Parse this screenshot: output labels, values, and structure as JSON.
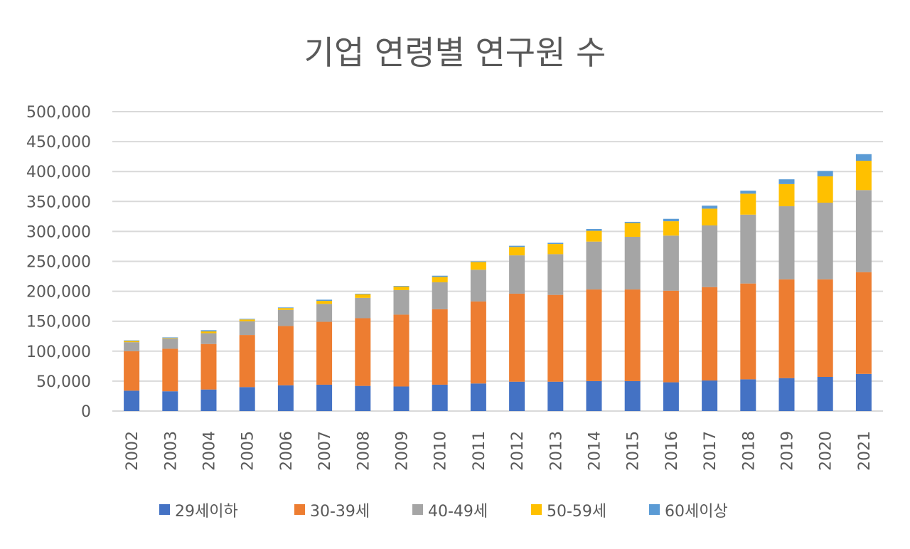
{
  "chart_data": {
    "type": "bar",
    "stacked": true,
    "title": "기업 연령별 연구원 수",
    "xlabel": "",
    "ylabel": "",
    "ylim": [
      0,
      500000
    ],
    "yticks": [
      "0",
      "50,000",
      "100,000",
      "150,000",
      "200,000",
      "250,000",
      "300,000",
      "350,000",
      "400,000",
      "450,000",
      "500,000"
    ],
    "grid": true,
    "legend_position": "bottom",
    "categories": [
      "2002",
      "2003",
      "2004",
      "2005",
      "2006",
      "2007",
      "2008",
      "2009",
      "2010",
      "2011",
      "2012",
      "2013",
      "2014",
      "2015",
      "2016",
      "2017",
      "2018",
      "2019",
      "2020",
      "2021"
    ],
    "series": [
      {
        "name": "29세이하",
        "color": "#4472C4",
        "values": [
          34000,
          33000,
          36000,
          40000,
          43000,
          44000,
          42000,
          41000,
          44000,
          46000,
          49000,
          49000,
          50000,
          50000,
          48000,
          51000,
          53000,
          55000,
          57000,
          62000
        ]
      },
      {
        "name": "30-39세",
        "color": "#ED7D31",
        "values": [
          66000,
          71000,
          76000,
          87000,
          99000,
          105000,
          113000,
          120000,
          126000,
          137000,
          147000,
          145000,
          153000,
          153000,
          153000,
          156000,
          160000,
          165000,
          163000,
          170000
        ]
      },
      {
        "name": "40-49세",
        "color": "#A5A5A5",
        "values": [
          15000,
          17000,
          18000,
          23000,
          27000,
          30000,
          34000,
          41000,
          45000,
          53000,
          64000,
          68000,
          80000,
          88000,
          92000,
          103000,
          115000,
          122000,
          128000,
          137000
        ]
      },
      {
        "name": "50-59세",
        "color": "#FFC000",
        "values": [
          2000,
          1000,
          3000,
          3000,
          3000,
          5000,
          6000,
          6000,
          9000,
          13000,
          14000,
          17000,
          18000,
          23000,
          24000,
          28000,
          35000,
          37000,
          44000,
          49000
        ]
      },
      {
        "name": "60세이상",
        "color": "#5B9BD5",
        "values": [
          1000,
          1000,
          2000,
          1000,
          1000,
          2000,
          1000,
          1000,
          2000,
          1000,
          2000,
          2000,
          3000,
          2000,
          4000,
          5000,
          5000,
          8000,
          9000,
          11000
        ]
      }
    ]
  }
}
